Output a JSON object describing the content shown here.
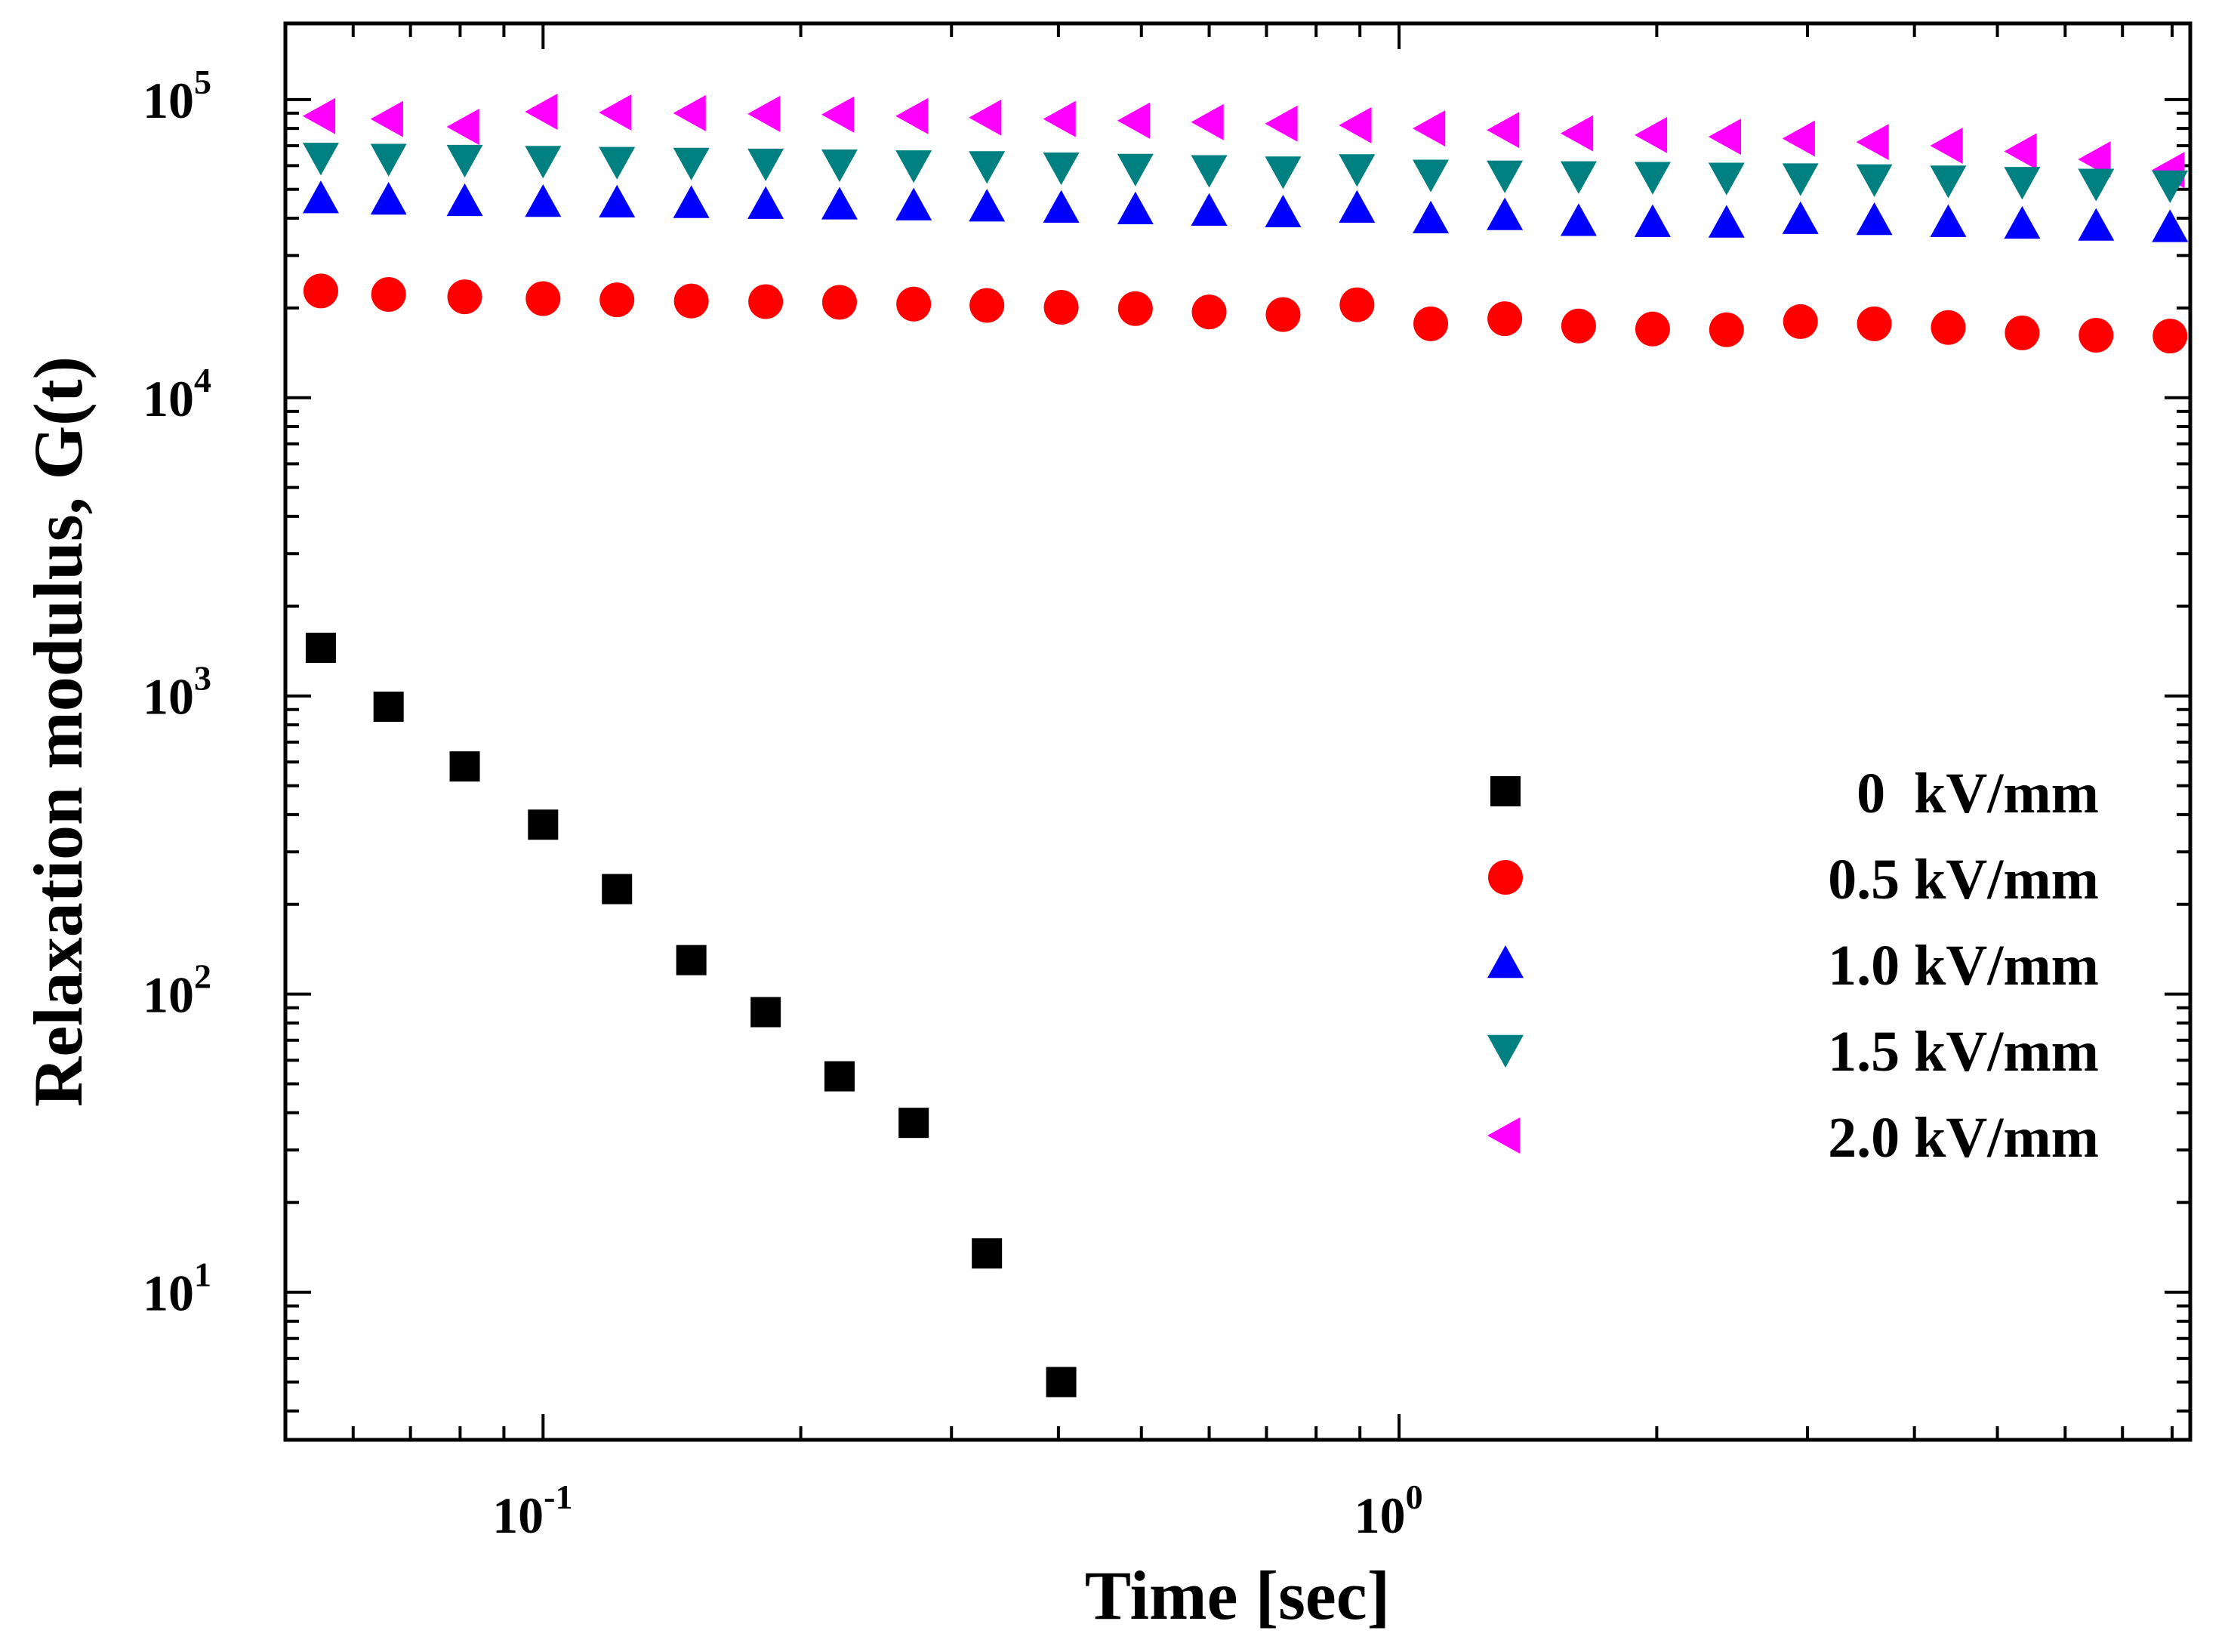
{
  "chart_data": {
    "type": "scatter",
    "xlabel": "Time [sec]",
    "ylabel": "Relaxation modulus, G(t)",
    "xscale": "log",
    "yscale": "log",
    "xlim": [
      0.05,
      8.4
    ],
    "ylim": [
      3.2,
      180000
    ],
    "x_ticks": [
      {
        "value": 0.1,
        "base": "10",
        "exp": "-1"
      },
      {
        "value": 1,
        "base": "10",
        "exp": "0"
      }
    ],
    "y_ticks": [
      {
        "value": 10,
        "base": "10",
        "exp": "1"
      },
      {
        "value": 100,
        "base": "10",
        "exp": "2"
      },
      {
        "value": 1000,
        "base": "10",
        "exp": "3"
      },
      {
        "value": 10000,
        "base": "10",
        "exp": "4"
      },
      {
        "value": 100000,
        "base": "10",
        "exp": "5"
      }
    ],
    "legend_position": "right-middle",
    "series": [
      {
        "name": "0  kV/mm",
        "marker": "square",
        "color": "#000000",
        "x": [
          0.055,
          0.066,
          0.081,
          0.1,
          0.122,
          0.149,
          0.182,
          0.222,
          0.271,
          0.33,
          0.403
        ],
        "y": [
          1450,
          920,
          580,
          370,
          225,
          130,
          87,
          53,
          37,
          13.5,
          5
        ]
      },
      {
        "name": "0.5 kV/mm",
        "marker": "circle",
        "color": "#ff0000",
        "x": [
          0.055,
          0.066,
          0.081,
          0.1,
          0.122,
          0.149,
          0.182,
          0.222,
          0.271,
          0.33,
          0.403,
          0.492,
          0.6,
          0.732,
          0.893,
          1.089,
          1.329,
          1.621,
          1.978,
          2.413,
          2.944,
          3.591,
          4.381,
          5.345,
          6.521,
          7.955
        ],
        "y": [
          22800,
          22200,
          21800,
          21500,
          21300,
          21100,
          21000,
          20900,
          20600,
          20400,
          20100,
          19900,
          19400,
          19000,
          20500,
          17700,
          18400,
          17400,
          17000,
          16900,
          18000,
          17700,
          17200,
          16500,
          16200,
          16100
        ]
      },
      {
        "name": "1.0 kV/mm",
        "marker": "triangle-up",
        "color": "#0000ff",
        "x": [
          0.055,
          0.066,
          0.081,
          0.1,
          0.122,
          0.149,
          0.182,
          0.222,
          0.271,
          0.33,
          0.403,
          0.492,
          0.6,
          0.732,
          0.893,
          1.089,
          1.329,
          1.621,
          1.978,
          2.413,
          2.944,
          3.591,
          4.381,
          5.345,
          6.521,
          7.955
        ],
        "y": [
          46500,
          46000,
          45500,
          45200,
          45000,
          44800,
          44500,
          44300,
          44000,
          43600,
          43200,
          42700,
          42200,
          41700,
          43200,
          39800,
          40800,
          39000,
          38700,
          38500,
          39600,
          39300,
          38700,
          38200,
          37600,
          37200
        ]
      },
      {
        "name": "1.5 kV/mm",
        "marker": "triangle-down",
        "color": "#008080",
        "x": [
          0.055,
          0.066,
          0.081,
          0.1,
          0.122,
          0.149,
          0.182,
          0.222,
          0.271,
          0.33,
          0.403,
          0.492,
          0.6,
          0.732,
          0.893,
          1.089,
          1.329,
          1.621,
          1.978,
          2.413,
          2.944,
          3.591,
          4.381,
          5.345,
          6.521,
          7.955
        ],
        "y": [
          64000,
          63500,
          63000,
          62500,
          62000,
          61600,
          61200,
          60800,
          60400,
          60000,
          59400,
          58800,
          58200,
          57600,
          58600,
          56200,
          55800,
          55500,
          55200,
          54900,
          54600,
          54200,
          53700,
          53100,
          52400,
          51700
        ]
      },
      {
        "name": "2.0 kV/mm",
        "marker": "triangle-left",
        "color": "#ff00ff",
        "x": [
          0.055,
          0.066,
          0.081,
          0.1,
          0.122,
          0.149,
          0.182,
          0.222,
          0.271,
          0.33,
          0.403,
          0.492,
          0.6,
          0.732,
          0.893,
          1.089,
          1.329,
          1.621,
          1.978,
          2.413,
          2.944,
          3.591,
          4.381,
          5.345,
          6.521,
          7.955
        ],
        "y": [
          88000,
          86000,
          81000,
          91000,
          90500,
          90000,
          89500,
          89000,
          88000,
          87000,
          86000,
          85000,
          84000,
          83000,
          82000,
          80000,
          79000,
          77000,
          76000,
          75000,
          74000,
          72000,
          70000,
          67000,
          63000,
          58000
        ]
      }
    ]
  }
}
